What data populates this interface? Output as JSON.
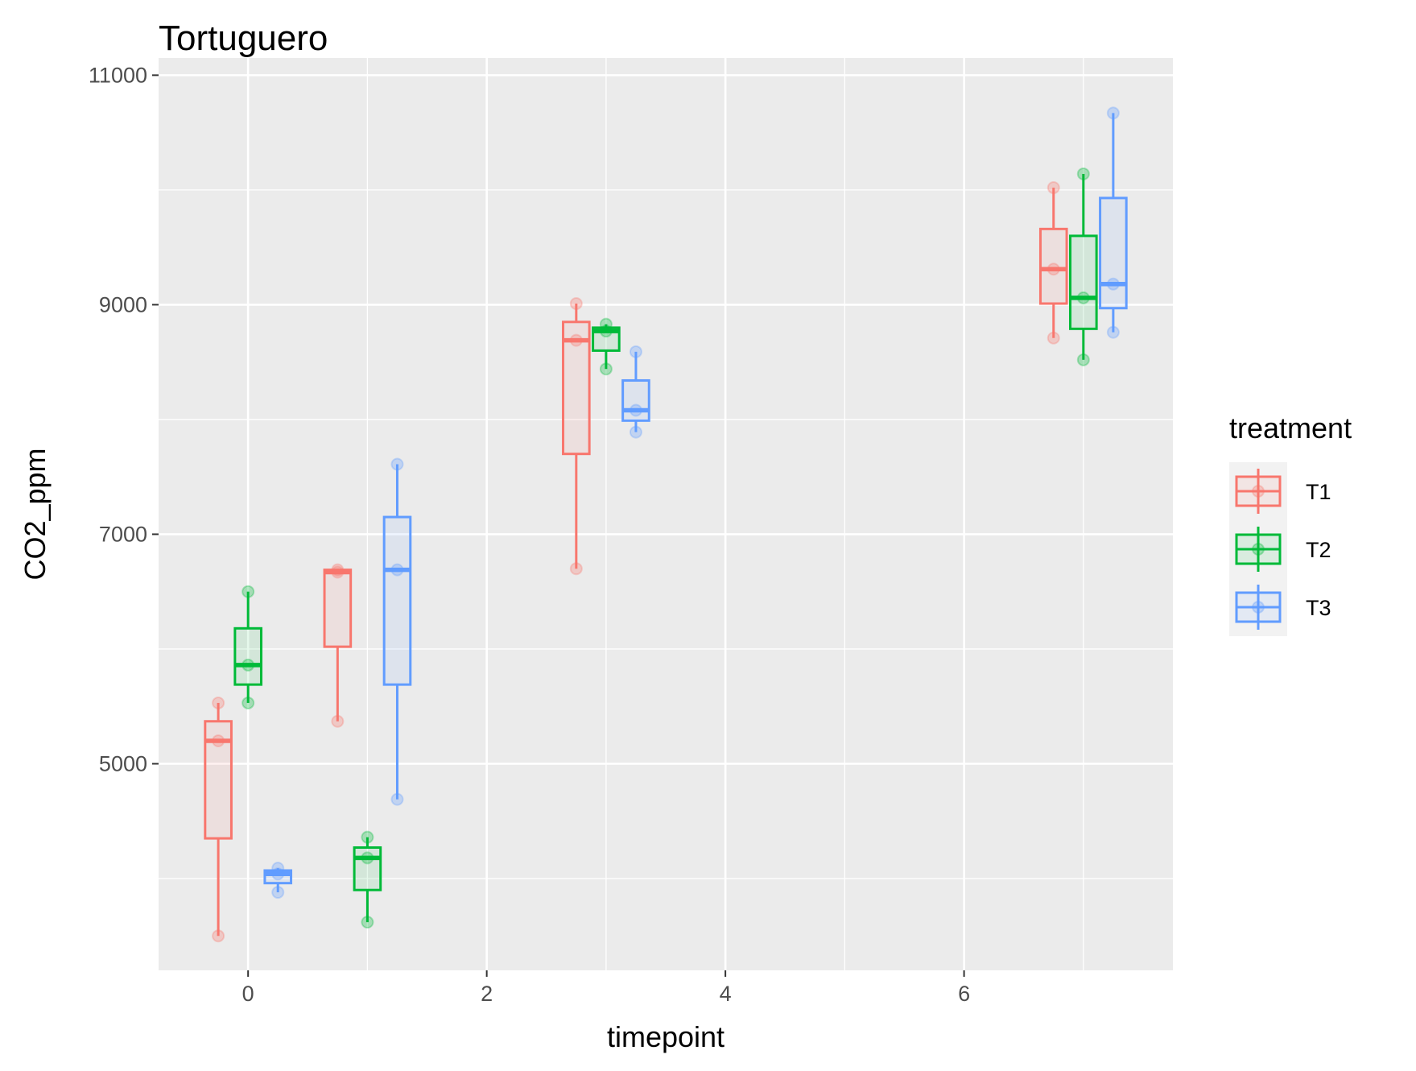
{
  "chart_data": {
    "type": "boxplot",
    "title": "Tortuguero",
    "xlabel": "timepoint",
    "ylabel": "CO2_ppm",
    "xlim": [
      -0.75,
      7.75
    ],
    "ylim": [
      3200,
      11150
    ],
    "x_ticks": [
      0,
      2,
      4,
      6
    ],
    "y_ticks": [
      5000,
      7000,
      9000,
      11000
    ],
    "x_minor": [
      1,
      3,
      5,
      7
    ],
    "y_minor": [
      4000,
      6000,
      8000,
      10000
    ],
    "grid": true,
    "background": "#ebebeb",
    "box_offset": 0.25,
    "box_width": 0.22,
    "legend": {
      "title": "treatment",
      "position": "right",
      "items": [
        {
          "name": "T1",
          "color": "#f8766d"
        },
        {
          "name": "T2",
          "color": "#00ba38"
        },
        {
          "name": "T3",
          "color": "#619cff"
        }
      ]
    },
    "series": [
      {
        "name": "T1",
        "color": "#f8766d",
        "boxes": [
          {
            "x": 0,
            "lower_whisker": 3500,
            "q1": 4350,
            "median": 5200,
            "q3": 5370,
            "upper_whisker": 5530
          },
          {
            "x": 1,
            "lower_whisker": 5370,
            "q1": 6020,
            "median": 6670,
            "q3": 6690,
            "upper_whisker": 6700
          },
          {
            "x": 3,
            "lower_whisker": 6700,
            "q1": 7700,
            "median": 8690,
            "q3": 8850,
            "upper_whisker": 9010
          },
          {
            "x": 7,
            "lower_whisker": 8710,
            "q1": 9010,
            "median": 9310,
            "q3": 9660,
            "upper_whisker": 10020
          }
        ],
        "points": [
          {
            "x": 0,
            "y": 3500
          },
          {
            "x": 0,
            "y": 5200
          },
          {
            "x": 0,
            "y": 5530
          },
          {
            "x": 1,
            "y": 5370
          },
          {
            "x": 1,
            "y": 6670
          },
          {
            "x": 1,
            "y": 6690
          },
          {
            "x": 3,
            "y": 6700
          },
          {
            "x": 3,
            "y": 8690
          },
          {
            "x": 3,
            "y": 9010
          },
          {
            "x": 7,
            "y": 8710
          },
          {
            "x": 7,
            "y": 9310
          },
          {
            "x": 7,
            "y": 10020
          }
        ]
      },
      {
        "name": "T2",
        "color": "#00ba38",
        "boxes": [
          {
            "x": 0,
            "lower_whisker": 5530,
            "q1": 5690,
            "median": 5860,
            "q3": 6180,
            "upper_whisker": 6500
          },
          {
            "x": 1,
            "lower_whisker": 3620,
            "q1": 3900,
            "median": 4180,
            "q3": 4270,
            "upper_whisker": 4360
          },
          {
            "x": 3,
            "lower_whisker": 8440,
            "q1": 8600,
            "median": 8770,
            "q3": 8800,
            "upper_whisker": 8830
          },
          {
            "x": 7,
            "lower_whisker": 8520,
            "q1": 8790,
            "median": 9060,
            "q3": 9600,
            "upper_whisker": 10140
          }
        ],
        "points": [
          {
            "x": 0,
            "y": 5530
          },
          {
            "x": 0,
            "y": 5860
          },
          {
            "x": 0,
            "y": 6500
          },
          {
            "x": 1,
            "y": 3620
          },
          {
            "x": 1,
            "y": 4180
          },
          {
            "x": 1,
            "y": 4360
          },
          {
            "x": 3,
            "y": 8440
          },
          {
            "x": 3,
            "y": 8770
          },
          {
            "x": 3,
            "y": 8830
          },
          {
            "x": 7,
            "y": 8520
          },
          {
            "x": 7,
            "y": 9060
          },
          {
            "x": 7,
            "y": 10140
          }
        ]
      },
      {
        "name": "T3",
        "color": "#619cff",
        "boxes": [
          {
            "x": 0,
            "lower_whisker": 3880,
            "q1": 3960,
            "median": 4040,
            "q3": 4070,
            "upper_whisker": 4090
          },
          {
            "x": 1,
            "lower_whisker": 4690,
            "q1": 5690,
            "median": 6690,
            "q3": 7150,
            "upper_whisker": 7610
          },
          {
            "x": 3,
            "lower_whisker": 7890,
            "q1": 7990,
            "median": 8080,
            "q3": 8340,
            "upper_whisker": 8590
          },
          {
            "x": 7,
            "lower_whisker": 8760,
            "q1": 8970,
            "median": 9180,
            "q3": 9930,
            "upper_whisker": 10670
          }
        ],
        "points": [
          {
            "x": 0,
            "y": 3880
          },
          {
            "x": 0,
            "y": 4040
          },
          {
            "x": 0,
            "y": 4090
          },
          {
            "x": 1,
            "y": 4690
          },
          {
            "x": 1,
            "y": 6690
          },
          {
            "x": 1,
            "y": 7610
          },
          {
            "x": 3,
            "y": 7890
          },
          {
            "x": 3,
            "y": 8080
          },
          {
            "x": 3,
            "y": 8590
          },
          {
            "x": 7,
            "y": 8760
          },
          {
            "x": 7,
            "y": 9180
          },
          {
            "x": 7,
            "y": 10670
          }
        ]
      }
    ]
  }
}
